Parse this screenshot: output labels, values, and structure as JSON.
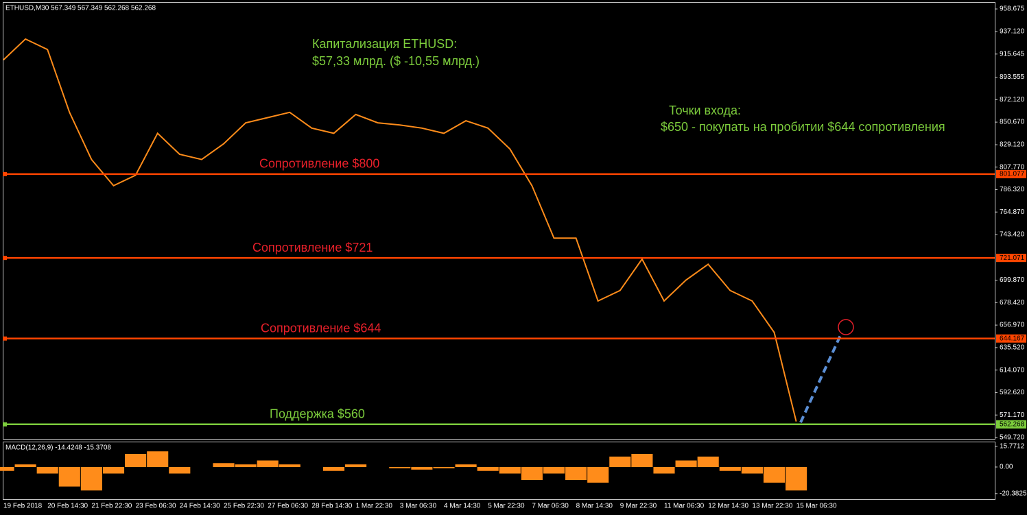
{
  "chart_data": {
    "type": "line",
    "title": "ETHUSD,M30  567.349 567.349 562.268 562.268",
    "categories": [
      "19 Feb 2018",
      null,
      "20 Feb 14:30",
      null,
      "21 Feb 22:30",
      null,
      "23 Feb 06:30",
      null,
      "24 Feb 14:30",
      null,
      "25 Feb 22:30",
      null,
      "27 Feb 06:30",
      null,
      "28 Feb 14:30",
      null,
      "1 Mar 22:30",
      null,
      "3 Mar 06:30",
      null,
      "4 Mar 14:30",
      null,
      "5 Mar 22:30",
      null,
      "7 Mar 06:30",
      null,
      "8 Mar 14:30",
      null,
      "9 Mar 22:30",
      null,
      "11 Mar 06:30",
      null,
      "12 Mar 14:30",
      null,
      "13 Mar 22:30",
      null,
      "15 Mar 06:30"
    ],
    "series": [
      {
        "name": "ETHUSD",
        "color": "#ff8c1a",
        "values": [
          910,
          930,
          920,
          860,
          815,
          790,
          800,
          840,
          820,
          815,
          830,
          850,
          855,
          860,
          845,
          840,
          858,
          850,
          848,
          845,
          840,
          852,
          845,
          825,
          790,
          740,
          740,
          680,
          690,
          720,
          680,
          700,
          715,
          690,
          680,
          650,
          565
        ]
      }
    ],
    "ylim": [
      548.4,
      964.6
    ],
    "yticks": [
      958.675,
      {
        "value": 937.12,
        "label": "937.120"
      },
      915.645,
      893.555,
      {
        "value": 872.12,
        "label": "872.120"
      },
      {
        "value": 850.67,
        "label": "850.670"
      },
      {
        "value": 829.12,
        "label": "829.120"
      },
      {
        "value": 807.77,
        "label": "807.770"
      },
      {
        "value": 786.32,
        "label": "786.320"
      },
      {
        "value": 764.87,
        "label": "764.870"
      },
      {
        "value": 743.42,
        "label": "743.420"
      },
      {
        "value": 699.87,
        "label": "699.870"
      },
      {
        "value": 678.42,
        "label": "678.420"
      },
      {
        "value": 656.97,
        "label": "656.970"
      },
      {
        "value": 635.52,
        "label": "635.520"
      },
      {
        "value": 614.07,
        "label": "614.070"
      },
      {
        "value": 592.62,
        "label": "592.620"
      },
      {
        "value": 571.17,
        "label": "571.170"
      },
      {
        "value": 549.72,
        "label": "549.720"
      }
    ],
    "levels": [
      {
        "value": 801.077,
        "label": "Сопротивление $800",
        "color": "#ff4500",
        "text_color": "#e8202a"
      },
      {
        "value": 721.071,
        "label": "Сопротивление $721",
        "color": "#ff4500",
        "text_color": "#e8202a"
      },
      {
        "value": 644.167,
        "label": "Сопротивление $644",
        "color": "#ff4500",
        "text_color": "#e8202a"
      },
      {
        "value": 562.268,
        "label": "Поддержка $560",
        "color": "#7ccc3c",
        "text_color": "#7ccc3c"
      }
    ],
    "annotations": {
      "cap_title": "Капитализация ETHUSD:",
      "cap_value": "$57,33 млрд. ($ -10,55 млрд.)",
      "entry_title": "Точки входа:",
      "entry_text": "$650 - покупать на пробитии $644 сопротивления"
    },
    "macd": {
      "title": "MACD(12,26,9) -14.4248 -15.3708",
      "color": "#ff8c1a",
      "values": [
        -3,
        2,
        -5,
        -15,
        -18,
        -5,
        10,
        12,
        -5,
        0,
        3,
        2,
        5,
        2,
        0,
        -3,
        2,
        0,
        -1,
        -2,
        -1,
        2,
        -3,
        -5,
        -10,
        -5,
        -10,
        -12,
        8,
        10,
        -5,
        5,
        8,
        -3,
        -5,
        -12,
        -18
      ],
      "ylim": [
        -24.7,
        18.93
      ],
      "yticks": [
        15.7712,
        {
          "value": 0,
          "label": "0.00"
        },
        -20.3825
      ]
    }
  }
}
